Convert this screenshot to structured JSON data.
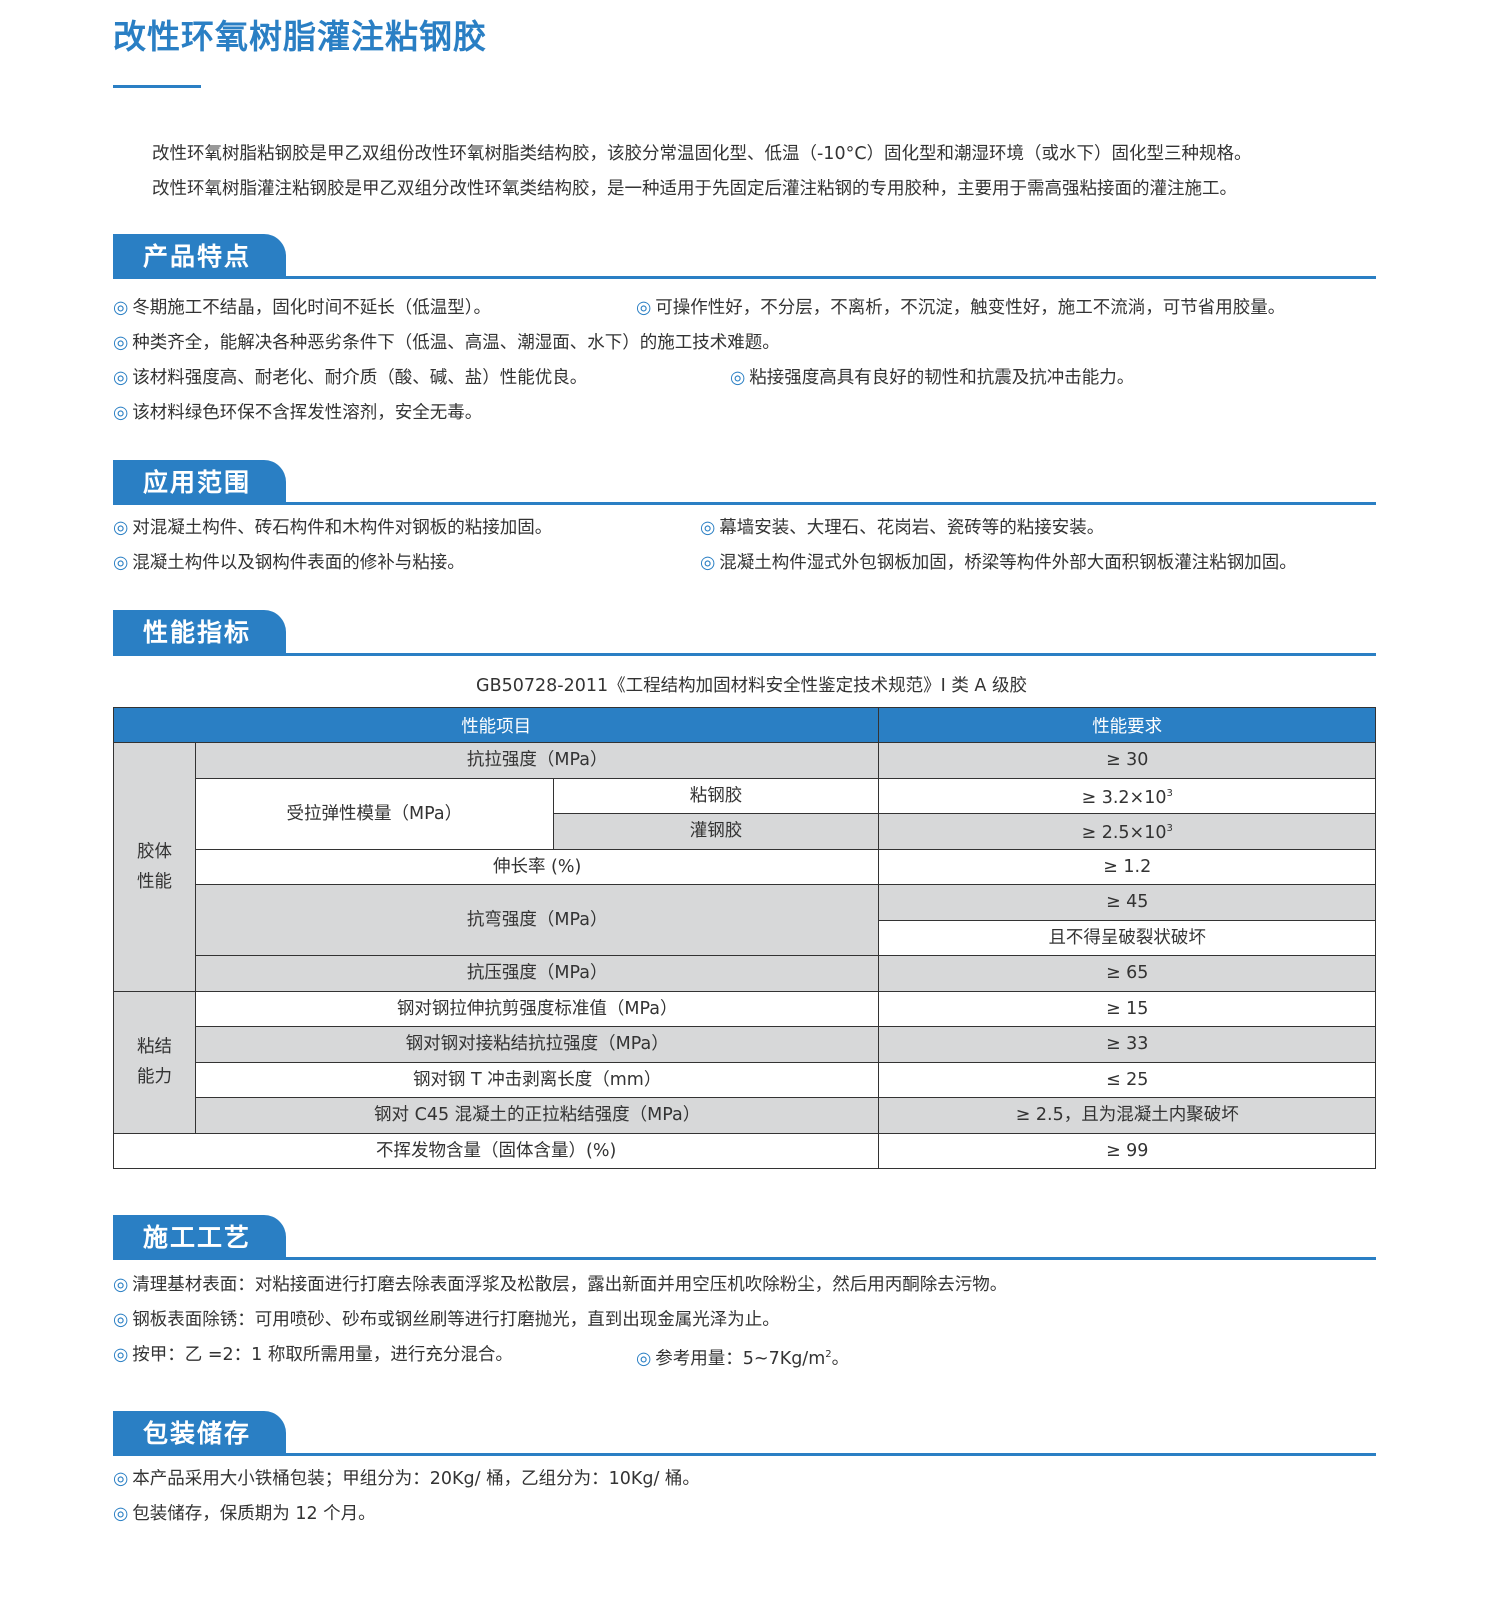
{
  "title": "改性环氧树脂灌注粘钢胶",
  "intro": [
    "改性环氧树脂粘钢胶是甲乙双组份改性环氧树脂类结构胶，该胶分常温固化型、低温（-10°C）固化型和潮湿环境（或水下）固化型三种规格。",
    "改性环氧树脂灌注粘钢胶是甲乙双组分改性环氧类结构胶，是一种适用于先固定后灌注粘钢的专用胶种，主要用于需高强粘接面的灌注施工。"
  ],
  "bullet": "◎",
  "accent_color": "#2a7fc4",
  "sections": {
    "features": {
      "title": "产品特点",
      "items": [
        "冬期施工不结晶，固化时间不延长（低温型）。",
        "可操作性好，不分层，不离析，不沉淀，触变性好，施工不流淌，可节省用胶量。",
        "种类齐全，能解决各种恶劣条件下（低温、高温、潮湿面、水下）的施工技术难题。",
        "该材料强度高、耐老化、耐介质（酸、碱、盐）性能优良。",
        "粘接强度高具有良好的韧性和抗震及抗冲击能力。",
        "该材料绿色环保不含挥发性溶剂，安全无毒。"
      ]
    },
    "application": {
      "title": "应用范围",
      "items": [
        "对混凝土构件、砖石构件和木构件对钢板的粘接加固。",
        "幕墙安装、大理石、花岗岩、瓷砖等的粘接安装。",
        "混凝土构件以及钢构件表面的修补与粘接。",
        "混凝土构件湿式外包钢板加固，桥梁等构件外部大面积钢板灌注粘钢加固。"
      ]
    },
    "performance": {
      "title": "性能指标",
      "standard": "GB50728-2011《工程结构加固材料安全性鉴定技术规范》I 类 A 级胶",
      "table": {
        "headers": [
          "性能项目",
          "性能要求"
        ],
        "groups": [
          "胶体\n性能",
          "粘结\n能力"
        ],
        "rows": {
          "tensile": {
            "item": "抗拉强度（MPa）",
            "req": "≥ 30"
          },
          "modulus": {
            "item": "受拉弹性模量（MPa）",
            "sub1": "粘钢胶",
            "req1": "≥ 3.2×10",
            "req1_sup": "3",
            "sub2": "灌钢胶",
            "req2": "≥ 2.5×10",
            "req2_sup": "3"
          },
          "elongation": {
            "item": "伸长率 (%)",
            "req": "≥ 1.2"
          },
          "bending": {
            "item": "抗弯强度（MPa）",
            "req1": "≥ 45",
            "req2": "且不得呈破裂状破坏"
          },
          "compressive": {
            "item": "抗压强度（MPa）",
            "req": "≥ 65"
          },
          "shear": {
            "item": "钢对钢拉伸抗剪强度标准值（MPa）",
            "req": "≥ 15"
          },
          "butt": {
            "item": "钢对钢对接粘结抗拉强度（MPa）",
            "req": "≥ 33"
          },
          "peel": {
            "item": "钢对钢 T 冲击剥离长度（mm）",
            "req": "≤ 25"
          },
          "concrete": {
            "item": "钢对 C45 混凝土的正拉粘结强度（MPa）",
            "req": "≥ 2.5，且为混凝土内聚破坏"
          },
          "solid": {
            "item": "不挥发物含量（固体含量）(%)",
            "req": "≥ 99"
          }
        }
      }
    },
    "process": {
      "title": "施工工艺",
      "items": [
        "清理基材表面：对粘接面进行打磨去除表面浮浆及松散层，露出新面并用空压机吹除粉尘，然后用丙酮除去污物。",
        "钢板表面除锈：可用喷砂、砂布或钢丝刷等进行打磨抛光，直到出现金属光泽为止。",
        "按甲：乙 =2：1 称取所需用量，进行充分混合。"
      ],
      "dosage": "参考用量：5~7Kg/m",
      "dosage_sup": "2",
      "dosage_end": "。"
    },
    "storage": {
      "title": "包装储存",
      "items": [
        "本产品采用大小铁桶包装；甲组分为：20Kg/ 桶，乙组分为：10Kg/ 桶。",
        "包装储存，保质期为 12 个月。"
      ]
    }
  }
}
